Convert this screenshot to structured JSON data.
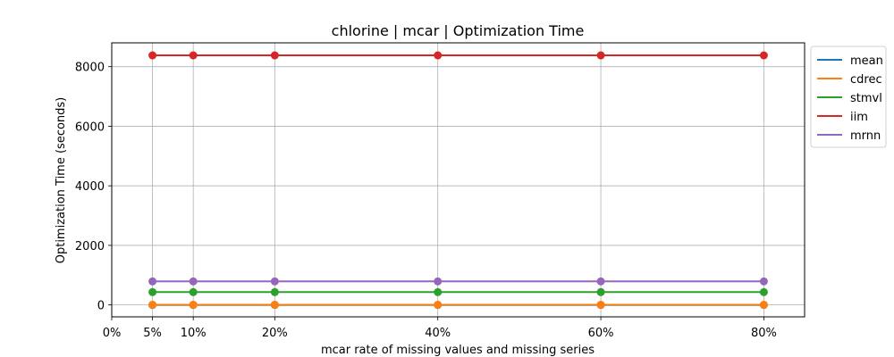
{
  "chart_data": {
    "type": "line",
    "title": "chlorine | mcar | Optimization Time",
    "xlabel": "mcar rate of missing values and missing series",
    "ylabel": "Optimization Time (seconds)",
    "x": [
      5,
      10,
      20,
      40,
      60,
      80
    ],
    "xlim": [
      0,
      85
    ],
    "xticks": [
      0,
      5,
      10,
      20,
      40,
      60,
      80
    ],
    "xtick_labels": [
      "0%",
      "5%",
      "10%",
      "20%",
      "40%",
      "60%",
      "80%"
    ],
    "ylim": [
      -400,
      8800
    ],
    "yticks": [
      0,
      2000,
      4000,
      6000,
      8000
    ],
    "ytick_labels": [
      "0",
      "2000",
      "4000",
      "6000",
      "8000"
    ],
    "grid": true,
    "legend_position": "outside-top-right",
    "series": [
      {
        "name": "mean",
        "color": "#1f77b4",
        "values": [
          0,
          0,
          0,
          0,
          0,
          0
        ]
      },
      {
        "name": "cdrec",
        "color": "#ff7f0e",
        "values": [
          5,
          5,
          5,
          5,
          5,
          5
        ]
      },
      {
        "name": "stmvl",
        "color": "#2ca02c",
        "values": [
          430,
          430,
          430,
          430,
          430,
          430
        ]
      },
      {
        "name": "iim",
        "color": "#d62728",
        "values": [
          8380,
          8380,
          8380,
          8380,
          8380,
          8380
        ]
      },
      {
        "name": "mrnn",
        "color": "#9467bd",
        "values": [
          790,
          790,
          790,
          790,
          790,
          790
        ]
      }
    ]
  }
}
